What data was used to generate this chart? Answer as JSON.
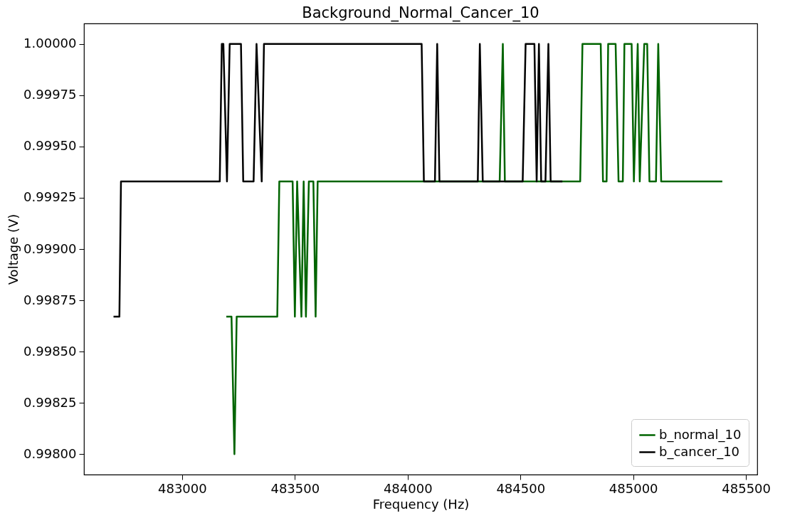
{
  "chart_data": {
    "type": "line",
    "title": "Background_Normal_Cancer_10",
    "xlabel": "Frequency (Hz)",
    "ylabel": "Voltage (V)",
    "xlim": [
      482565,
      485550
    ],
    "xticks": [
      483000,
      483500,
      484000,
      484500,
      485000,
      485500
    ],
    "ylim": [
      0.9979,
      1.0001
    ],
    "yticks": [
      {
        "value": 0.998,
        "label": "0.99800"
      },
      {
        "value": 0.99825,
        "label": "0.99825"
      },
      {
        "value": 0.9985,
        "label": "0.99850"
      },
      {
        "value": 0.99875,
        "label": "0.99875"
      },
      {
        "value": 0.999,
        "label": "0.99900"
      },
      {
        "value": 0.99925,
        "label": "0.99925"
      },
      {
        "value": 0.9995,
        "label": "0.99950"
      },
      {
        "value": 0.99975,
        "label": "0.99975"
      },
      {
        "value": 1,
        "label": "1.00000"
      }
    ],
    "grid": false,
    "legend": "bottom right",
    "marker": "none",
    "line_style": "solid",
    "series": [
      {
        "name": "b_normal_10",
        "color": "#006400",
        "x": [
          483196,
          483219,
          483232,
          483242,
          483422,
          483431,
          483490,
          483500,
          483510,
          483529,
          483539,
          483549,
          483562,
          483582,
          483592,
          483601,
          484408,
          484422,
          484431,
          484765,
          484775,
          484856,
          484866,
          484882,
          484889,
          484922,
          484935,
          484954,
          484961,
          484993,
          485003,
          485020,
          485029,
          485049,
          485062,
          485072,
          485101,
          485111,
          485124,
          485395
        ],
        "values": [
          0.99867,
          0.99867,
          0.998,
          0.99867,
          0.99867,
          0.99933,
          0.99933,
          0.99867,
          0.99933,
          0.99867,
          0.99933,
          0.99867,
          0.99933,
          0.99933,
          0.99867,
          0.99933,
          0.99933,
          1,
          0.99933,
          0.99933,
          1,
          1,
          0.99933,
          0.99933,
          1,
          1,
          0.99933,
          0.99933,
          1,
          1,
          0.99933,
          1,
          0.99933,
          1,
          1,
          0.99933,
          0.99933,
          1,
          0.99933,
          0.99933
        ]
      },
      {
        "name": "b_cancer_10",
        "color": "#000000",
        "x": [
          482696,
          482722,
          482729,
          483167,
          483176,
          483183,
          483199,
          483211,
          483261,
          483271,
          483317,
          483330,
          483353,
          483363,
          484062,
          484072,
          484121,
          484131,
          484141,
          484311,
          484320,
          484333,
          484510,
          484523,
          484562,
          484572,
          484582,
          484592,
          484611,
          484624,
          484634,
          484686
        ],
        "values": [
          0.99867,
          0.99867,
          0.99933,
          0.99933,
          1,
          1,
          0.99933,
          1,
          1,
          0.99933,
          0.99933,
          1,
          0.99933,
          1,
          1,
          0.99933,
          0.99933,
          1,
          0.99933,
          0.99933,
          1,
          0.99933,
          0.99933,
          1,
          1,
          0.99933,
          1,
          0.99933,
          0.99933,
          1,
          0.99933,
          0.99933
        ]
      }
    ]
  }
}
